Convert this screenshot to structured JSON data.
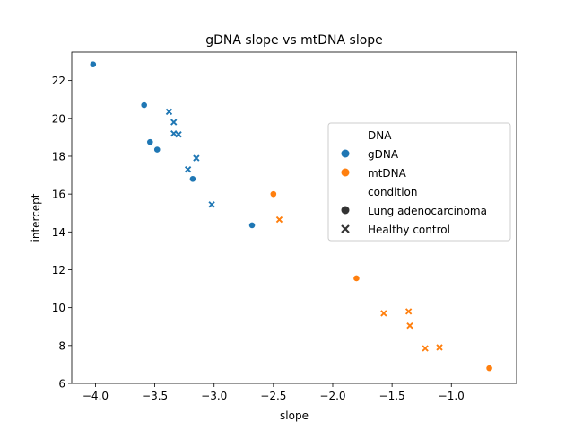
{
  "chart_data": {
    "type": "scatter",
    "title": "gDNA slope vs mtDNA slope",
    "xlabel": "slope",
    "ylabel": "intercept",
    "xlim": [
      -4.2,
      -0.45
    ],
    "ylim": [
      6.0,
      23.5
    ],
    "xticks": [
      -4.0,
      -3.5,
      -3.0,
      -2.5,
      -2.0,
      -1.5,
      -1.0
    ],
    "xtick_labels": [
      "−4.0",
      "−3.5",
      "−3.0",
      "−2.5",
      "−2.0",
      "−1.5",
      "−1.0"
    ],
    "yticks": [
      6,
      8,
      10,
      12,
      14,
      16,
      18,
      20,
      22
    ],
    "ytick_labels": [
      "6",
      "8",
      "10",
      "12",
      "14",
      "16",
      "18",
      "20",
      "22"
    ],
    "grid": false,
    "legend": {
      "placement": "center-right",
      "hue_title": "DNA",
      "hue_entries": [
        {
          "label": "gDNA",
          "color": "#1f77b4"
        },
        {
          "label": "mtDNA",
          "color": "#ff7f0e"
        }
      ],
      "style_title": "condition",
      "style_entries": [
        {
          "label": "Lung adenocarcinoma",
          "marker": "circle"
        },
        {
          "label": "Healthy control",
          "marker": "x"
        }
      ]
    },
    "series": [
      {
        "dna": "gDNA",
        "condition": "Lung adenocarcinoma",
        "color": "#1f77b4",
        "marker": "circle",
        "points": [
          [
            -4.02,
            22.85
          ],
          [
            -3.59,
            20.7
          ],
          [
            -3.54,
            18.75
          ],
          [
            -3.48,
            18.35
          ],
          [
            -3.18,
            16.8
          ],
          [
            -2.68,
            14.35
          ]
        ]
      },
      {
        "dna": "gDNA",
        "condition": "Healthy control",
        "color": "#1f77b4",
        "marker": "x",
        "points": [
          [
            -3.38,
            20.35
          ],
          [
            -3.34,
            19.8
          ],
          [
            -3.34,
            19.2
          ],
          [
            -3.3,
            19.15
          ],
          [
            -3.15,
            17.9
          ],
          [
            -3.22,
            17.3
          ],
          [
            -3.02,
            15.45
          ]
        ]
      },
      {
        "dna": "mtDNA",
        "condition": "Lung adenocarcinoma",
        "color": "#ff7f0e",
        "marker": "circle",
        "points": [
          [
            -2.5,
            16.0
          ],
          [
            -1.8,
            11.55
          ],
          [
            -0.68,
            6.8
          ]
        ]
      },
      {
        "dna": "mtDNA",
        "condition": "Healthy control",
        "color": "#ff7f0e",
        "marker": "x",
        "points": [
          [
            -2.45,
            14.65
          ],
          [
            -1.57,
            9.7
          ],
          [
            -1.36,
            9.8
          ],
          [
            -1.35,
            9.05
          ],
          [
            -1.22,
            7.85
          ],
          [
            -1.1,
            7.9
          ]
        ]
      }
    ]
  }
}
